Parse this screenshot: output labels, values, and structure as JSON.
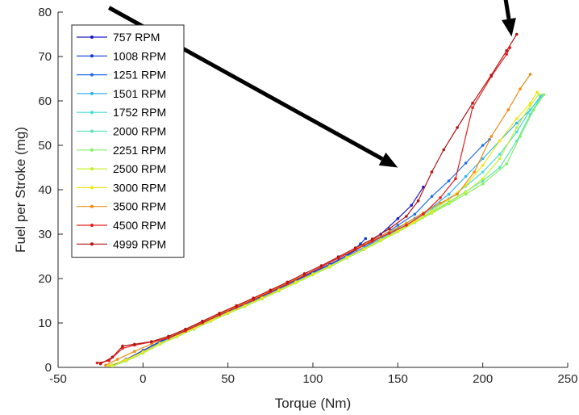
{
  "chart_data": {
    "type": "line",
    "title": "",
    "xlabel": "Torque (Nm)",
    "ylabel": "Fuel per Stroke (mg)",
    "xlim": [
      -50,
      250
    ],
    "ylim": [
      0,
      80
    ],
    "x_ticks": [
      -50,
      0,
      50,
      100,
      150,
      200,
      250
    ],
    "y_ticks": [
      0,
      10,
      20,
      30,
      40,
      50,
      60,
      70,
      80
    ],
    "grid": false,
    "legend_position": "top-left",
    "series": [
      {
        "name": " 757 RPM",
        "color": "#1a1ac8",
        "points": [
          [
            -18,
            0.5
          ],
          [
            -10,
            1.8
          ],
          [
            0,
            3.8
          ],
          [
            10,
            5.8
          ],
          [
            20,
            7.5
          ],
          [
            30,
            9.2
          ],
          [
            40,
            11
          ],
          [
            50,
            12.7
          ],
          [
            60,
            14.3
          ],
          [
            70,
            16
          ],
          [
            80,
            17.8
          ],
          [
            90,
            19.6
          ],
          [
            100,
            21.4
          ],
          [
            110,
            23.2
          ],
          [
            120,
            25.2
          ],
          [
            130,
            27.5
          ],
          [
            140,
            30
          ],
          [
            150,
            33.5
          ],
          [
            158,
            36.5
          ],
          [
            165,
            40.6
          ]
        ]
      },
      {
        "name": "1008 RPM",
        "color": "#0a3cd2",
        "points": [
          [
            -18,
            0.4
          ],
          [
            -10,
            1.7
          ],
          [
            0,
            3.7
          ],
          [
            10,
            5.7
          ],
          [
            20,
            7.4
          ],
          [
            30,
            9.1
          ],
          [
            40,
            10.9
          ],
          [
            50,
            12.6
          ],
          [
            60,
            14.2
          ],
          [
            70,
            15.9
          ],
          [
            80,
            17.7
          ],
          [
            90,
            19.5
          ],
          [
            100,
            21.3
          ],
          [
            110,
            23.1
          ],
          [
            120,
            25.1
          ],
          [
            128,
            27.8
          ],
          [
            131,
            29
          ]
        ]
      },
      {
        "name": "1251 RPM",
        "color": "#1e6ee6",
        "points": [
          [
            -18,
            0.4
          ],
          [
            -10,
            1.7
          ],
          [
            0,
            3.6
          ],
          [
            10,
            5.6
          ],
          [
            20,
            7.3
          ],
          [
            30,
            9
          ],
          [
            40,
            10.8
          ],
          [
            50,
            12.5
          ],
          [
            60,
            14.1
          ],
          [
            70,
            15.8
          ],
          [
            80,
            17.6
          ],
          [
            90,
            19.4
          ],
          [
            100,
            21.2
          ],
          [
            110,
            23
          ],
          [
            120,
            25
          ],
          [
            130,
            27
          ],
          [
            140,
            29.4
          ],
          [
            150,
            32
          ],
          [
            160,
            34.5
          ],
          [
            170,
            38.5
          ],
          [
            180,
            42
          ],
          [
            190,
            46
          ],
          [
            200,
            50
          ],
          [
            204,
            51.3
          ]
        ]
      },
      {
        "name": "1501 RPM",
        "color": "#32b4f0",
        "points": [
          [
            -18,
            0.3
          ],
          [
            -10,
            1.6
          ],
          [
            0,
            3.5
          ],
          [
            10,
            5.5
          ],
          [
            20,
            7.2
          ],
          [
            30,
            8.9
          ],
          [
            40,
            10.7
          ],
          [
            50,
            12.4
          ],
          [
            60,
            14
          ],
          [
            70,
            15.7
          ],
          [
            80,
            17.5
          ],
          [
            90,
            19.3
          ],
          [
            100,
            21.1
          ],
          [
            110,
            22.9
          ],
          [
            120,
            24.9
          ],
          [
            130,
            26.9
          ],
          [
            140,
            29
          ],
          [
            150,
            31.3
          ],
          [
            160,
            33.6
          ],
          [
            170,
            36
          ],
          [
            180,
            39
          ],
          [
            190,
            43
          ],
          [
            200,
            47
          ],
          [
            210,
            51
          ],
          [
            220,
            55
          ],
          [
            228,
            58
          ],
          [
            234,
            61
          ]
        ]
      },
      {
        "name": "1752 RPM",
        "color": "#46dcdc",
        "points": [
          [
            -18,
            0.3
          ],
          [
            -10,
            1.5
          ],
          [
            0,
            3.4
          ],
          [
            10,
            5.4
          ],
          [
            20,
            7.1
          ],
          [
            30,
            8.8
          ],
          [
            40,
            10.6
          ],
          [
            50,
            12.3
          ],
          [
            60,
            13.9
          ],
          [
            70,
            15.6
          ],
          [
            80,
            17.4
          ],
          [
            90,
            19.2
          ],
          [
            100,
            21
          ],
          [
            110,
            22.8
          ],
          [
            120,
            24.8
          ],
          [
            130,
            26.7
          ],
          [
            140,
            28.8
          ],
          [
            150,
            31
          ],
          [
            160,
            33.2
          ],
          [
            170,
            35.6
          ],
          [
            180,
            38
          ],
          [
            190,
            40.8
          ],
          [
            200,
            44
          ],
          [
            210,
            48
          ],
          [
            220,
            53
          ],
          [
            228,
            58
          ],
          [
            235,
            61.2
          ]
        ]
      },
      {
        "name": "2000 RPM",
        "color": "#5ae6b4",
        "points": [
          [
            -18,
            0.3
          ],
          [
            -10,
            1.5
          ],
          [
            0,
            3.3
          ],
          [
            10,
            5.3
          ],
          [
            20,
            7
          ],
          [
            30,
            8.7
          ],
          [
            40,
            10.5
          ],
          [
            50,
            12.2
          ],
          [
            60,
            13.8
          ],
          [
            70,
            15.5
          ],
          [
            80,
            17.3
          ],
          [
            90,
            19.1
          ],
          [
            100,
            20.9
          ],
          [
            110,
            22.7
          ],
          [
            120,
            24.7
          ],
          [
            130,
            26.6
          ],
          [
            140,
            28.6
          ],
          [
            150,
            30.7
          ],
          [
            160,
            32.8
          ],
          [
            170,
            35
          ],
          [
            180,
            37.2
          ],
          [
            190,
            39.6
          ],
          [
            200,
            42
          ],
          [
            210,
            45
          ],
          [
            220,
            51
          ],
          [
            228,
            57
          ],
          [
            235,
            61.3
          ]
        ]
      },
      {
        "name": "2251 RPM",
        "color": "#82f064",
        "points": [
          [
            -18,
            0.3
          ],
          [
            -10,
            1.4
          ],
          [
            0,
            3.2
          ],
          [
            10,
            5.2
          ],
          [
            20,
            6.9
          ],
          [
            30,
            8.6
          ],
          [
            40,
            10.4
          ],
          [
            50,
            12.1
          ],
          [
            60,
            13.7
          ],
          [
            70,
            15.4
          ],
          [
            80,
            17.2
          ],
          [
            90,
            19
          ],
          [
            100,
            20.8
          ],
          [
            110,
            22.6
          ],
          [
            120,
            24.6
          ],
          [
            130,
            26.5
          ],
          [
            140,
            28.5
          ],
          [
            150,
            30.5
          ],
          [
            160,
            32.6
          ],
          [
            170,
            34.7
          ],
          [
            180,
            36.8
          ],
          [
            190,
            39
          ],
          [
            200,
            41.3
          ],
          [
            214,
            45.8
          ],
          [
            222,
            52
          ],
          [
            230,
            58
          ],
          [
            236,
            61.4
          ]
        ]
      },
      {
        "name": "2500 RPM",
        "color": "#c8f032",
        "points": [
          [
            -18,
            0.3
          ],
          [
            -10,
            1.5
          ],
          [
            0,
            3.3
          ],
          [
            10,
            5.3
          ],
          [
            20,
            7
          ],
          [
            30,
            8.7
          ],
          [
            40,
            10.5
          ],
          [
            50,
            12.2
          ],
          [
            60,
            13.8
          ],
          [
            70,
            15.5
          ],
          [
            80,
            17.3
          ],
          [
            90,
            19.1
          ],
          [
            100,
            20.9
          ],
          [
            110,
            22.7
          ],
          [
            120,
            24.7
          ],
          [
            130,
            26.6
          ],
          [
            140,
            28.6
          ],
          [
            150,
            30.6
          ],
          [
            160,
            32.7
          ],
          [
            170,
            34.8
          ],
          [
            180,
            37
          ],
          [
            190,
            39.5
          ],
          [
            200,
            42.5
          ],
          [
            210,
            47
          ],
          [
            220,
            54
          ],
          [
            228,
            59
          ],
          [
            233,
            61.5
          ]
        ]
      },
      {
        "name": "3000 RPM",
        "color": "#f0e614",
        "points": [
          [
            -20,
            0.4
          ],
          [
            -10,
            1.7
          ],
          [
            0,
            3.5
          ],
          [
            10,
            5.4
          ],
          [
            20,
            7.1
          ],
          [
            30,
            8.8
          ],
          [
            40,
            10.6
          ],
          [
            50,
            12.3
          ],
          [
            60,
            13.9
          ],
          [
            70,
            15.6
          ],
          [
            80,
            17.4
          ],
          [
            90,
            19.2
          ],
          [
            100,
            21
          ],
          [
            110,
            22.8
          ],
          [
            120,
            24.8
          ],
          [
            130,
            26.7
          ],
          [
            140,
            28.7
          ],
          [
            150,
            30.7
          ],
          [
            160,
            32.9
          ],
          [
            170,
            35.2
          ],
          [
            180,
            37.8
          ],
          [
            190,
            41
          ],
          [
            200,
            45.5
          ],
          [
            210,
            51
          ],
          [
            220,
            56
          ],
          [
            228,
            59.5
          ],
          [
            232,
            62
          ]
        ]
      },
      {
        "name": "3500 RPM",
        "color": "#f08c14",
        "points": [
          [
            -22,
            0.5
          ],
          [
            -15,
            1.8
          ],
          [
            -5,
            3.6
          ],
          [
            5,
            5.3
          ],
          [
            15,
            6.9
          ],
          [
            25,
            8.5
          ],
          [
            35,
            10.3
          ],
          [
            45,
            12
          ],
          [
            55,
            13.7
          ],
          [
            65,
            15.4
          ],
          [
            75,
            17.2
          ],
          [
            85,
            19
          ],
          [
            95,
            20.8
          ],
          [
            105,
            22.6
          ],
          [
            115,
            24.6
          ],
          [
            125,
            26.6
          ],
          [
            135,
            28.6
          ],
          [
            145,
            30.5
          ],
          [
            155,
            32.5
          ],
          [
            165,
            34.8
          ],
          [
            175,
            37
          ],
          [
            185,
            39
          ],
          [
            195,
            44
          ],
          [
            205,
            52
          ],
          [
            215,
            58
          ],
          [
            222,
            62.7
          ],
          [
            228,
            66
          ]
        ]
      },
      {
        "name": "4500 RPM",
        "color": "#e61e1e",
        "points": [
          [
            -27,
            1
          ],
          [
            -20,
            1.5
          ],
          [
            -12,
            4.3
          ],
          [
            -5,
            5
          ],
          [
            5,
            5.7
          ],
          [
            15,
            6.6
          ],
          [
            25,
            8.2
          ],
          [
            35,
            10
          ],
          [
            45,
            11.8
          ],
          [
            55,
            13.5
          ],
          [
            65,
            15.2
          ],
          [
            75,
            17
          ],
          [
            85,
            18.8
          ],
          [
            95,
            20.7
          ],
          [
            105,
            22.6
          ],
          [
            115,
            24.6
          ],
          [
            125,
            26.5
          ],
          [
            135,
            28.4
          ],
          [
            145,
            30.2
          ],
          [
            155,
            32
          ],
          [
            165,
            34.5
          ],
          [
            175,
            38.2
          ],
          [
            184,
            42.5
          ],
          [
            194,
            58.5
          ],
          [
            205,
            65.5
          ],
          [
            214,
            70.5
          ],
          [
            216,
            72
          ]
        ]
      },
      {
        "name": "4999 RPM",
        "color": "#b41414",
        "points": [
          [
            -25,
            0.8
          ],
          [
            -18,
            2.3
          ],
          [
            -12,
            4.8
          ],
          [
            -5,
            5.2
          ],
          [
            5,
            5.8
          ],
          [
            15,
            7
          ],
          [
            25,
            8.6
          ],
          [
            35,
            10.4
          ],
          [
            45,
            12.2
          ],
          [
            55,
            13.9
          ],
          [
            65,
            15.6
          ],
          [
            75,
            17.4
          ],
          [
            85,
            19.2
          ],
          [
            95,
            21.1
          ],
          [
            105,
            22.9
          ],
          [
            115,
            24.9
          ],
          [
            125,
            26.9
          ],
          [
            135,
            28.9
          ],
          [
            145,
            31.2
          ],
          [
            155,
            34
          ],
          [
            162,
            37.5
          ],
          [
            170,
            44
          ],
          [
            177,
            49
          ],
          [
            185,
            54
          ],
          [
            194,
            59.5
          ],
          [
            205,
            65.8
          ],
          [
            214,
            71.3
          ],
          [
            220,
            75
          ]
        ]
      }
    ]
  },
  "annotations": {
    "arrows": [
      {
        "from": [
          -20,
          81
        ],
        "to": [
          150,
          45
        ]
      },
      {
        "from": [
          213,
          84
        ],
        "to": [
          217,
          74.5
        ]
      }
    ]
  }
}
